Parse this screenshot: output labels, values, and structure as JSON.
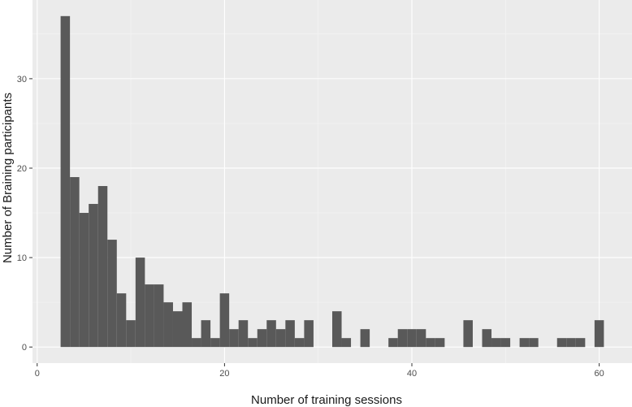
{
  "chart_data": {
    "type": "bar",
    "subtype": "histogram",
    "xlabel": "Number of training sessions",
    "ylabel": "Number of Braining participants",
    "xlim": [
      -0.5,
      63.5
    ],
    "ylim": [
      -1.8,
      38.8
    ],
    "x_ticks": [
      0,
      20,
      40,
      60
    ],
    "y_ticks": [
      0,
      10,
      20,
      30
    ],
    "grid": true,
    "background": "#ebebeb",
    "grid_major_color": "#ffffff",
    "bar_color": "#595959",
    "bin_width": 1,
    "bins": [
      {
        "x": 3,
        "count": 37
      },
      {
        "x": 4,
        "count": 19
      },
      {
        "x": 5,
        "count": 15
      },
      {
        "x": 6,
        "count": 16
      },
      {
        "x": 7,
        "count": 18
      },
      {
        "x": 8,
        "count": 12
      },
      {
        "x": 9,
        "count": 6
      },
      {
        "x": 10,
        "count": 3
      },
      {
        "x": 11,
        "count": 10
      },
      {
        "x": 12,
        "count": 7
      },
      {
        "x": 13,
        "count": 7
      },
      {
        "x": 14,
        "count": 5
      },
      {
        "x": 15,
        "count": 4
      },
      {
        "x": 16,
        "count": 5
      },
      {
        "x": 17,
        "count": 1
      },
      {
        "x": 18,
        "count": 3
      },
      {
        "x": 19,
        "count": 1
      },
      {
        "x": 20,
        "count": 6
      },
      {
        "x": 21,
        "count": 2
      },
      {
        "x": 22,
        "count": 3
      },
      {
        "x": 23,
        "count": 1
      },
      {
        "x": 24,
        "count": 2
      },
      {
        "x": 25,
        "count": 3
      },
      {
        "x": 26,
        "count": 2
      },
      {
        "x": 27,
        "count": 3
      },
      {
        "x": 28,
        "count": 1
      },
      {
        "x": 29,
        "count": 3
      },
      {
        "x": 32,
        "count": 4
      },
      {
        "x": 33,
        "count": 1
      },
      {
        "x": 35,
        "count": 2
      },
      {
        "x": 38,
        "count": 1
      },
      {
        "x": 39,
        "count": 2
      },
      {
        "x": 40,
        "count": 2
      },
      {
        "x": 41,
        "count": 2
      },
      {
        "x": 42,
        "count": 1
      },
      {
        "x": 43,
        "count": 1
      },
      {
        "x": 46,
        "count": 3
      },
      {
        "x": 48,
        "count": 2
      },
      {
        "x": 49,
        "count": 1
      },
      {
        "x": 50,
        "count": 1
      },
      {
        "x": 52,
        "count": 1
      },
      {
        "x": 53,
        "count": 1
      },
      {
        "x": 56,
        "count": 1
      },
      {
        "x": 57,
        "count": 1
      },
      {
        "x": 58,
        "count": 1
      },
      {
        "x": 60,
        "count": 3
      }
    ]
  }
}
